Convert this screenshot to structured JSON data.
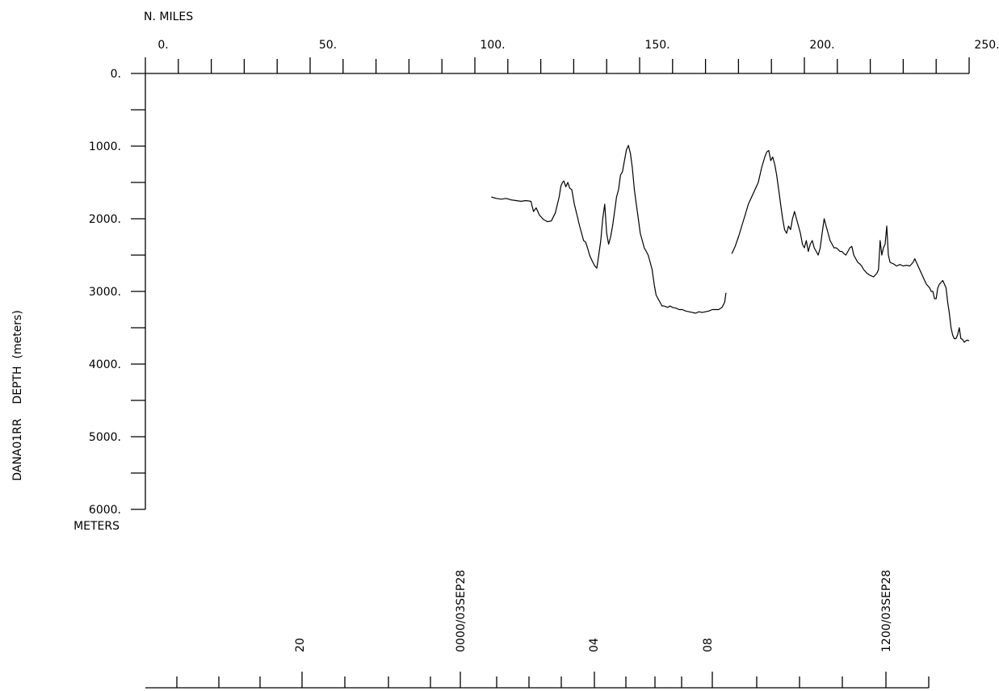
{
  "chart_data": {
    "type": "line",
    "title": "",
    "xlabel": "N. MILES",
    "ylabel": "DANA01RR    DEPTH  (meters)",
    "yunit_label": "METERS",
    "xlim": [
      0,
      250
    ],
    "ylim": [
      0,
      6000
    ],
    "y_inverted": true,
    "x_tick_labels": [
      "0.",
      "50.",
      "100.",
      "150.",
      "200.",
      "250."
    ],
    "x_tick_values": [
      0,
      50,
      100,
      150,
      200,
      250
    ],
    "y_tick_labels": [
      "0.",
      "1000.",
      "2000.",
      "3000.",
      "4000.",
      "5000.",
      "6000."
    ],
    "y_tick_values": [
      0,
      1000,
      2000,
      3000,
      4000,
      5000,
      6000
    ],
    "grid": false,
    "legend": "none",
    "time_axis_labels": [
      "20",
      "0000/03SEP28",
      "04",
      "08",
      "1200/03SEP28"
    ],
    "series": [
      {
        "segments": [
          {
            "x": [
              105.0,
              106.5,
              108.0,
              109.5,
              111.0,
              112.5,
              114.0,
              115.5,
              117.0,
              117.8,
              118.6,
              119.6,
              120.8,
              122.0,
              123.2,
              124.4,
              125.6,
              126.1,
              126.6,
              127.0,
              127.6,
              128.2,
              128.8,
              129.4,
              130.2,
              131.0,
              131.8,
              132.4,
              133.0,
              133.6,
              134.2,
              134.8,
              135.3,
              135.8,
              136.4,
              137.0,
              137.6,
              138.2,
              138.8,
              139.4,
              140.0,
              140.6,
              141.2,
              141.8,
              142.4,
              143.0,
              143.6,
              144.2,
              144.8,
              145.4,
              146.0,
              146.6,
              147.2,
              147.8,
              148.4,
              149.0,
              149.6,
              150.2,
              150.8,
              151.4,
              152.0,
              152.6,
              153.2,
              153.8,
              154.4,
              155.0,
              155.6,
              156.2,
              156.8,
              157.4,
              158.0,
              158.6,
              159.2,
              160.0,
              161.0,
              162.0,
              163.0,
              164.0,
              165.0,
              166.0,
              167.0,
              168.0,
              169.0,
              170.0,
              171.0,
              172.0,
              173.0,
              174.0,
              175.0,
              175.8,
              176.2
            ],
            "y": [
              1700,
              1720,
              1730,
              1720,
              1740,
              1750,
              1760,
              1750,
              1760,
              1900,
              1850,
              1950,
              2010,
              2040,
              2030,
              1920,
              1700,
              1550,
              1500,
              1480,
              1560,
              1500,
              1580,
              1600,
              1800,
              1950,
              2100,
              2200,
              2300,
              2320,
              2400,
              2500,
              2550,
              2600,
              2650,
              2680,
              2500,
              2300,
              2000,
              1800,
              2200,
              2350,
              2250,
              2100,
              1900,
              1700,
              1600,
              1400,
              1350,
              1200,
              1050,
              990,
              1100,
              1300,
              1600,
              1800,
              2000,
              2200,
              2300,
              2400,
              2450,
              2500,
              2600,
              2700,
              2900,
              3050,
              3100,
              3150,
              3200,
              3200,
              3210,
              3220,
              3200,
              3220,
              3230,
              3250,
              3250,
              3270,
              3280,
              3290,
              3300,
              3280,
              3290,
              3280,
              3270,
              3250,
              3250,
              3250,
              3220,
              3150,
              3020
            ]
          },
          {
            "x": [
              178.0,
              179.0,
              180.0,
              181.0,
              182.0,
              183.0,
              184.0,
              185.0,
              186.0,
              187.0,
              188.0,
              188.6,
              189.2,
              189.8,
              190.4,
              191.0,
              191.6,
              192.2,
              192.8,
              193.4,
              194.0,
              194.6,
              195.2,
              195.8,
              196.4,
              197.0,
              197.6,
              198.2,
              198.8,
              199.4,
              200.0,
              200.6,
              201.2,
              201.8,
              202.4,
              203.0,
              203.6,
              204.2,
              204.8,
              205.4,
              206.0,
              206.6,
              207.2,
              207.8,
              208.4,
              209.0,
              209.6,
              210.2,
              210.8,
              211.4,
              212.0,
              212.6,
              213.2,
              213.8,
              214.4,
              215.0,
              215.6,
              216.2,
              216.8,
              217.4,
              218.0,
              219.0,
              220.0,
              221.0,
              222.0,
              222.5,
              223.0,
              223.5,
              224.0,
              224.5,
              225.0,
              225.5,
              226.0,
              227.0,
              228.0,
              229.0,
              230.0,
              231.0,
              232.0,
              233.0,
              233.5,
              234.0,
              235.0,
              236.0,
              237.0,
              238.0,
              238.5,
              239.0,
              239.5,
              240.0,
              240.5,
              241.0,
              242.0,
              243.0,
              243.5,
              244.0,
              244.5,
              245.0,
              245.5,
              246.0,
              246.5,
              247.0,
              247.5,
              248.0,
              248.5,
              249.0,
              249.5,
              250.0
            ],
            "y": [
              2480,
              2380,
              2250,
              2100,
              1950,
              1800,
              1700,
              1600,
              1500,
              1300,
              1150,
              1080,
              1060,
              1200,
              1150,
              1250,
              1400,
              1600,
              1800,
              2000,
              2150,
              2200,
              2100,
              2150,
              2000,
              1900,
              2000,
              2100,
              2200,
              2350,
              2400,
              2300,
              2450,
              2350,
              2300,
              2400,
              2450,
              2500,
              2400,
              2200,
              2000,
              2100,
              2200,
              2300,
              2350,
              2400,
              2400,
              2420,
              2450,
              2450,
              2480,
              2500,
              2450,
              2400,
              2380,
              2500,
              2550,
              2600,
              2620,
              2650,
              2700,
              2750,
              2780,
              2800,
              2750,
              2700,
              2300,
              2500,
              2400,
              2350,
              2100,
              2500,
              2600,
              2620,
              2650,
              2630,
              2650,
              2640,
              2650,
              2600,
              2550,
              2600,
              2700,
              2800,
              2900,
              2950,
              3000,
              3000,
              3100,
              3100,
              2950,
              2900,
              2850,
              2950,
              3150,
              3300,
              3500,
              3600,
              3650,
              3650,
              3600,
              3500,
              3650,
              3660,
              3700,
              3680,
              3670,
              3680
            ]
          }
        ]
      }
    ]
  }
}
